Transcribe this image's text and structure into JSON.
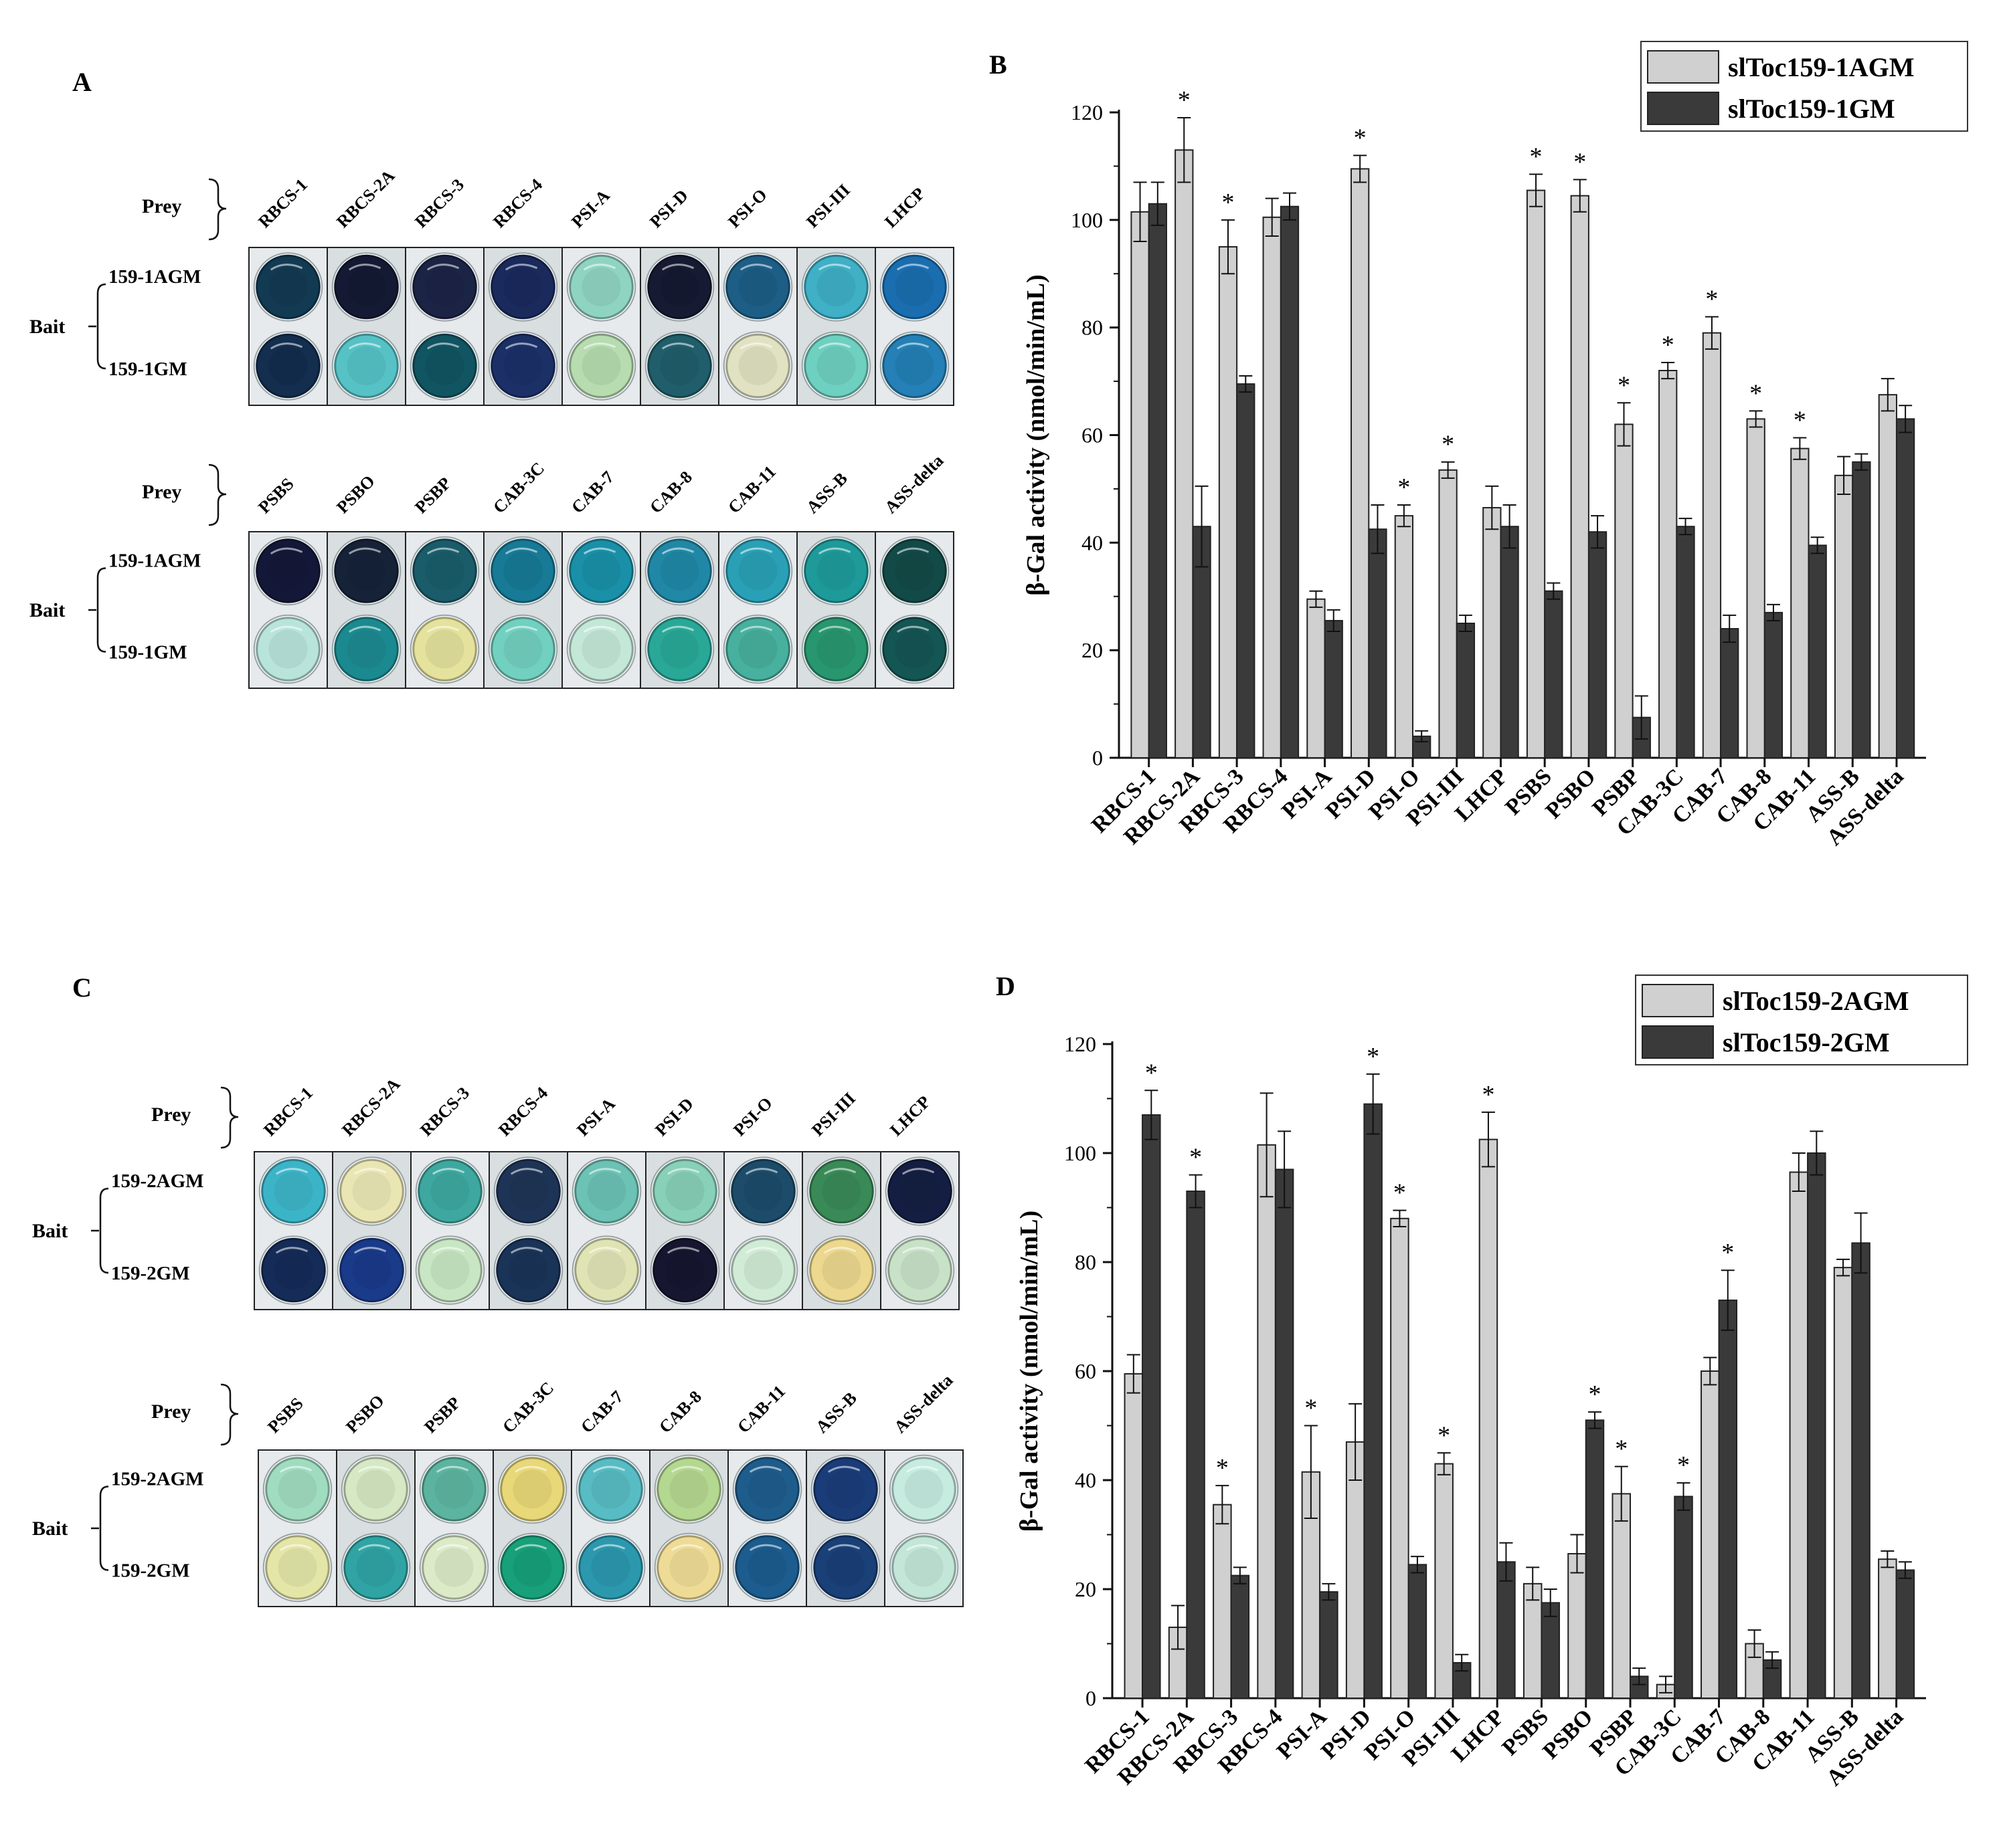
{
  "panels": {
    "A": "A",
    "B": "B",
    "C": "C",
    "D": "D"
  },
  "plate_labels": {
    "prey": "Prey",
    "bait": "Bait"
  },
  "plateA": {
    "row_labels": [
      "159-1AGM",
      "159-1GM"
    ],
    "top": {
      "preys": [
        "RBCS-1",
        "RBCS-2A",
        "RBCS-3",
        "RBCS-4",
        "PSI-A",
        "PSI-D",
        "PSI-O",
        "PSI-III",
        "LHCP"
      ],
      "well_colors": [
        [
          "#123a52",
          "#141a34",
          "#1c2446",
          "#1a2a5c",
          "#8fd4c2",
          "#161a32",
          "#1d5e86",
          "#3fb0c6",
          "#1a6eb0"
        ],
        [
          "#132e4e",
          "#56c2c6",
          "#115462",
          "#1c3068",
          "#b6dcb0",
          "#1f5e6a",
          "#e0e2c2",
          "#6ed0c0",
          "#2480b6"
        ]
      ]
    },
    "bottom": {
      "preys": [
        "PSBS",
        "PSBO",
        "PSBP",
        "CAB-3C",
        "CAB-7",
        "CAB-8",
        "CAB-11",
        "ASS-B",
        "ASS-delta"
      ],
      "well_colors": [
        [
          "#141838",
          "#162238",
          "#1a5c6a",
          "#177a96",
          "#1a90a8",
          "#2088a6",
          "#2aa0b6",
          "#1e9a9a",
          "#124a48"
        ],
        [
          "#b8e4dc",
          "#1b8a90",
          "#e4e29c",
          "#72d0c0",
          "#c4e8d8",
          "#29a898",
          "#48b09e",
          "#28966e",
          "#145654"
        ]
      ]
    }
  },
  "plateC": {
    "row_labels": [
      "159-2AGM",
      "159-2GM"
    ],
    "top": {
      "preys": [
        "RBCS-1",
        "RBCS-2A",
        "RBCS-3",
        "RBCS-4",
        "PSI-A",
        "PSI-D",
        "PSI-O",
        "PSI-III",
        "LHCP"
      ],
      "well_colors": [
        [
          "#3cb4c8",
          "#eae6b4",
          "#3ea8a0",
          "#1e3456",
          "#6cc2b4",
          "#88d0b8",
          "#1c4c6a",
          "#3a8a58",
          "#141e42"
        ],
        [
          "#152c58",
          "#1a3a8a",
          "#c8e6c4",
          "#1a3458",
          "#e0e4b4",
          "#161630",
          "#d0ecd6",
          "#ecd88e",
          "#c8e2c8"
        ]
      ]
    },
    "bottom": {
      "preys": [
        "PSBS",
        "PSBO",
        "PSBP",
        "CAB-3C",
        "CAB-7",
        "CAB-8",
        "CAB-11",
        "ASS-B",
        "ASS-delta"
      ],
      "well_colors": [
        [
          "#a0dcc0",
          "#d6e8c4",
          "#5cb4a0",
          "#e8d878",
          "#58bcc4",
          "#b4d890",
          "#1e5c8c",
          "#1a3c78",
          "#c6ece0"
        ],
        [
          "#e4e6a8",
          "#30a4a4",
          "#dceac8",
          "#18a07a",
          "#2c98ae",
          "#eedc96",
          "#1c5c8e",
          "#1a4078",
          "#c2e6d8"
        ]
      ]
    }
  },
  "chart_data": [
    {
      "type": "bar",
      "panel": "B",
      "title": "",
      "xlabel": "",
      "ylabel": "β-Gal activity (nmol/min/mL)",
      "ylim": [
        0,
        120
      ],
      "yticks": [
        0,
        20,
        40,
        60,
        80,
        100,
        120
      ],
      "categories": [
        "RBCS-1",
        "RBCS-2A",
        "RBCS-3",
        "RBCS-4",
        "PSI-A",
        "PSI-D",
        "PSI-O",
        "PSI-III",
        "LHCP",
        "PSBS",
        "PSBO",
        "PSBP",
        "CAB-3C",
        "CAB-7",
        "CAB-8",
        "CAB-11",
        "ASS-B",
        "ASS-delta"
      ],
      "series": [
        {
          "name": "slToc159-1AGM",
          "color": "#d0d0d0",
          "values": [
            101.5,
            113,
            95,
            100.5,
            29.5,
            109.5,
            45,
            53.5,
            46.5,
            105.5,
            104.5,
            62,
            72,
            79,
            63,
            57.5,
            52.5,
            67.5
          ],
          "errors": [
            5.5,
            6,
            5,
            3.5,
            1.5,
            2.5,
            2,
            1.5,
            4,
            3,
            3,
            4,
            1.5,
            3,
            1.5,
            2,
            3.5,
            3
          ]
        },
        {
          "name": "slToc159-1GM",
          "color": "#3a3a3a",
          "values": [
            103,
            43,
            69.5,
            102.5,
            25.5,
            42.5,
            4,
            25,
            43,
            31,
            42,
            7.5,
            43,
            24,
            27,
            39.5,
            55,
            63
          ],
          "errors": [
            4,
            7.5,
            1.5,
            2.5,
            2,
            4.5,
            1,
            1.5,
            4,
            1.5,
            3,
            4,
            1.5,
            2.5,
            1.5,
            1.5,
            1.5,
            2.5
          ]
        }
      ],
      "significance": [
        {
          "category": "RBCS-2A",
          "label": "*"
        },
        {
          "category": "RBCS-3",
          "label": "*"
        },
        {
          "category": "PSI-D",
          "label": "*"
        },
        {
          "category": "PSI-O",
          "label": "*"
        },
        {
          "category": "PSI-III",
          "label": "*"
        },
        {
          "category": "PSBS",
          "label": "*"
        },
        {
          "category": "PSBO",
          "label": "*"
        },
        {
          "category": "PSBP",
          "label": "*"
        },
        {
          "category": "CAB-3C",
          "label": "*"
        },
        {
          "category": "CAB-7",
          "label": "*"
        },
        {
          "category": "CAB-8",
          "label": "*"
        },
        {
          "category": "CAB-11",
          "label": "*"
        }
      ],
      "legend": "top-right"
    },
    {
      "type": "bar",
      "panel": "D",
      "title": "",
      "xlabel": "",
      "ylabel": "β-Gal activity (nmol/min/mL)",
      "ylim": [
        0,
        120
      ],
      "yticks": [
        0,
        20,
        40,
        60,
        80,
        100,
        120
      ],
      "categories": [
        "RBCS-1",
        "RBCS-2A",
        "RBCS-3",
        "RBCS-4",
        "PSI-A",
        "PSI-D",
        "PSI-O",
        "PSI-III",
        "LHCP",
        "PSBS",
        "PSBO",
        "PSBP",
        "CAB-3C",
        "CAB-7",
        "CAB-8",
        "CAB-11",
        "ASS-B",
        "ASS-delta"
      ],
      "series": [
        {
          "name": "slToc159-2AGM",
          "color": "#d0d0d0",
          "values": [
            59.5,
            13,
            35.5,
            101.5,
            41.5,
            47,
            88,
            43,
            102.5,
            21,
            26.5,
            37.5,
            2.5,
            60,
            10,
            96.5,
            79,
            25.5
          ],
          "errors": [
            3.5,
            4,
            3.5,
            9.5,
            8.5,
            7,
            1.5,
            2,
            5,
            3,
            3.5,
            5,
            1.5,
            2.5,
            2.5,
            3.5,
            1.5,
            1.5
          ]
        },
        {
          "name": "slToc159-2GM",
          "color": "#3a3a3a",
          "values": [
            107,
            93,
            22.5,
            97,
            19.5,
            109,
            24.5,
            6.5,
            25,
            17.5,
            51,
            4,
            37,
            73,
            7,
            100,
            83.5,
            23.5
          ],
          "errors": [
            4.5,
            3,
            1.5,
            7,
            1.5,
            5.5,
            1.5,
            1.5,
            3.5,
            2.5,
            1.5,
            1.5,
            2.5,
            5.5,
            1.5,
            4,
            5.5,
            1.5
          ]
        }
      ],
      "significance": [
        {
          "category": "RBCS-1",
          "label": "*"
        },
        {
          "category": "RBCS-2A",
          "label": "*"
        },
        {
          "category": "RBCS-3",
          "label": "*"
        },
        {
          "category": "PSI-A",
          "label": "*"
        },
        {
          "category": "PSI-D",
          "label": "*"
        },
        {
          "category": "PSI-O",
          "label": "*"
        },
        {
          "category": "PSI-III",
          "label": "*"
        },
        {
          "category": "LHCP",
          "label": "*"
        },
        {
          "category": "PSBO",
          "label": "*"
        },
        {
          "category": "PSBP",
          "label": "*"
        },
        {
          "category": "CAB-3C",
          "label": "*"
        },
        {
          "category": "CAB-7",
          "label": "*"
        }
      ],
      "legend": "top-right"
    }
  ]
}
